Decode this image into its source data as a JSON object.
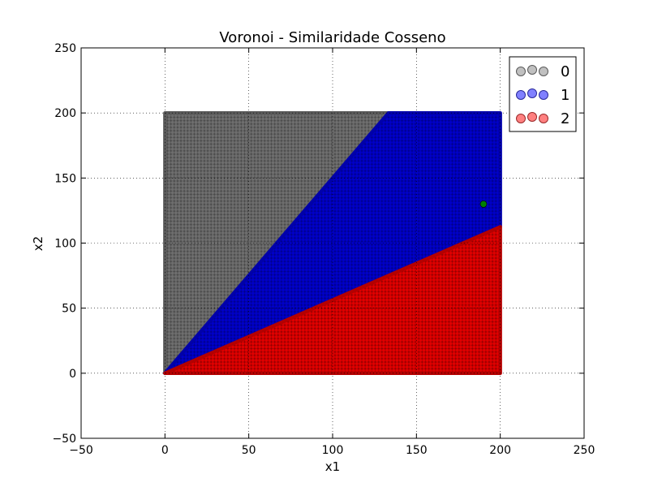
{
  "chart_data": {
    "type": "scatter",
    "title": "Voronoi - Similaridade Cosseno",
    "xlabel": "x1",
    "ylabel": "x2",
    "xlim": [
      -50,
      250
    ],
    "ylim": [
      -50,
      250
    ],
    "xticks": [
      -50,
      0,
      50,
      100,
      150,
      200,
      250
    ],
    "yticks": [
      -50,
      0,
      50,
      100,
      150,
      200,
      250
    ],
    "xtick_labels": [
      "−50",
      "0",
      "50",
      "100",
      "150",
      "200",
      "250"
    ],
    "ytick_labels": [
      "−50",
      "0",
      "50",
      "100",
      "150",
      "200",
      "250"
    ],
    "grid": true,
    "legend_position": "top-right",
    "grid_region": {
      "x": [
        0,
        200
      ],
      "y": [
        0,
        200
      ]
    },
    "series": [
      {
        "name": "0",
        "color": "#808080",
        "region": "angle above 56.3 degrees"
      },
      {
        "name": "1",
        "color": "#0000ff",
        "region": "angle between 29.4 and 56.3 degrees"
      },
      {
        "name": "2",
        "color": "#ff0000",
        "region": "angle below 29.4 degrees"
      }
    ],
    "boundaries": [
      {
        "between": [
          "0",
          "1"
        ],
        "slope": 1.5
      },
      {
        "between": [
          "1",
          "2"
        ],
        "slope": 0.5625
      }
    ],
    "highlight_point": {
      "x": 190,
      "y": 130,
      "color": "#008000"
    }
  }
}
